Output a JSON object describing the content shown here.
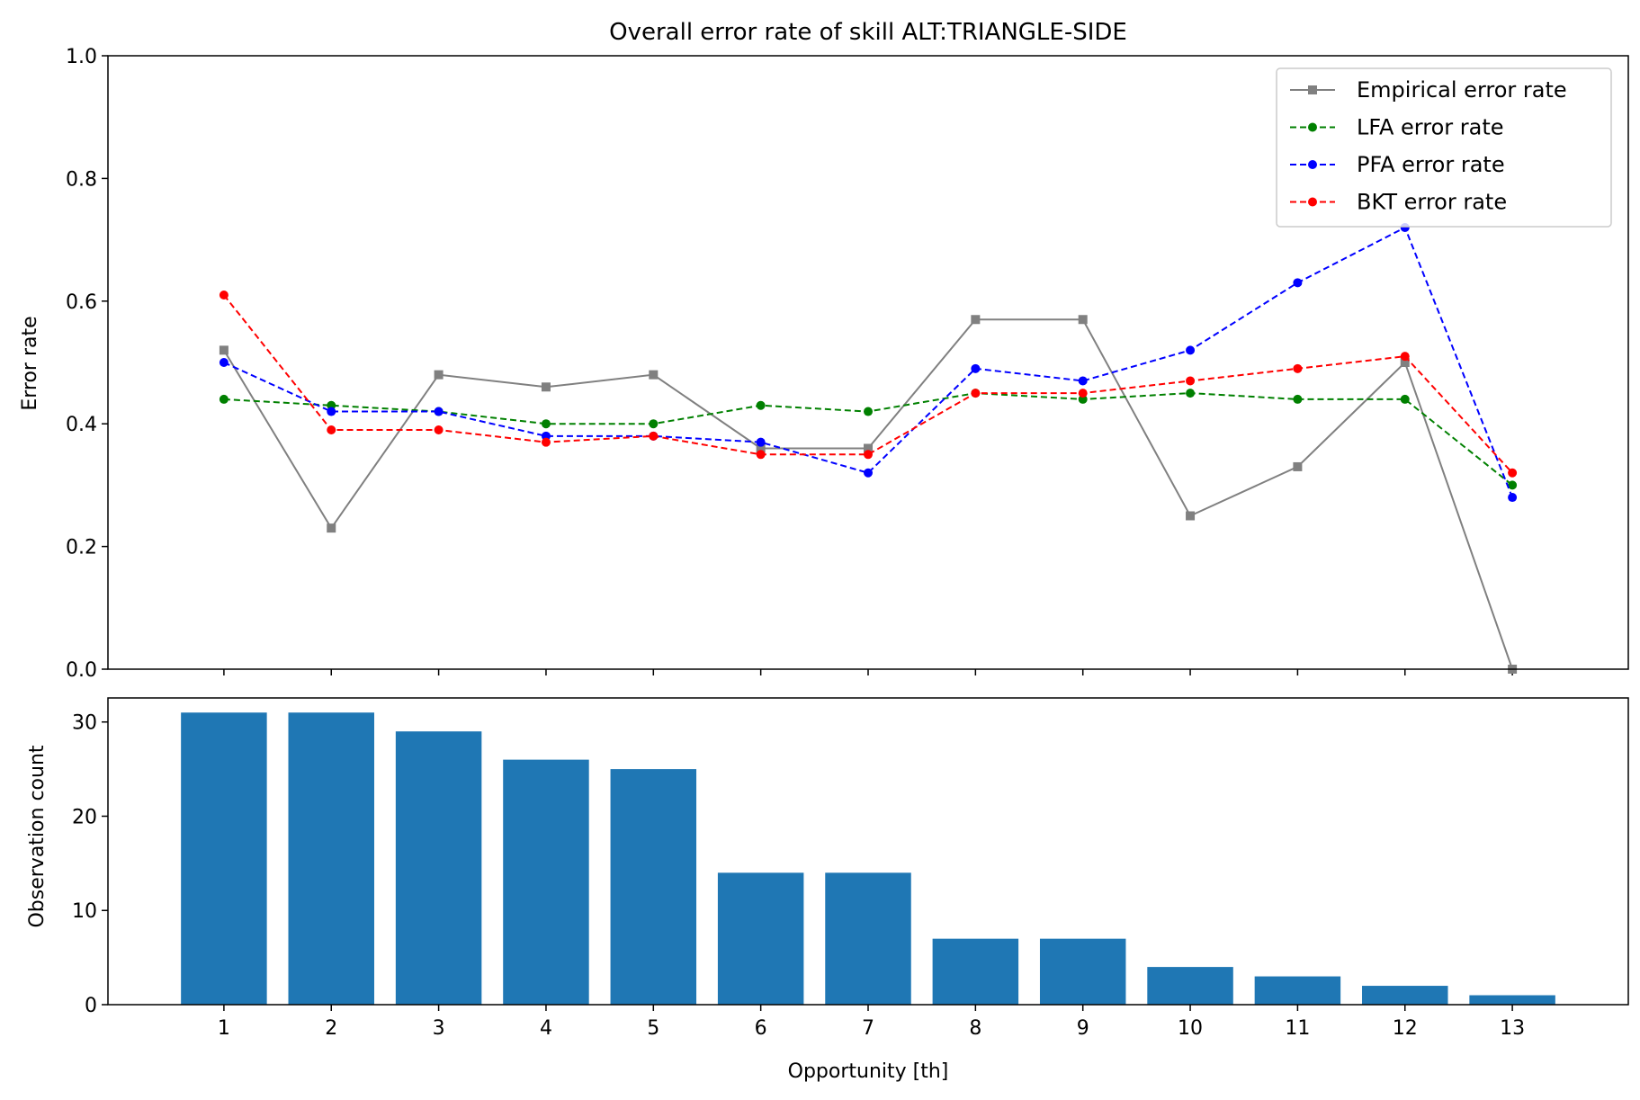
{
  "chart_data": [
    {
      "type": "line",
      "title": "Overall error rate of skill ALT:TRIANGLE-SIDE",
      "xlabel": "",
      "ylabel": "Error rate",
      "x": [
        1,
        2,
        3,
        4,
        5,
        6,
        7,
        8,
        9,
        10,
        11,
        12,
        13
      ],
      "xlim": [
        -0.08,
        14.08
      ],
      "ylim": [
        0,
        1
      ],
      "yticks": [
        "0.0",
        "0.2",
        "0.4",
        "0.6",
        "0.8",
        "1.0"
      ],
      "grid": false,
      "legend_position": "top-right",
      "series": [
        {
          "name": "Empirical error rate",
          "color": "#808080",
          "style": "solid",
          "marker": "square",
          "values": [
            0.52,
            0.23,
            0.48,
            0.46,
            0.48,
            0.36,
            0.36,
            0.57,
            0.57,
            0.25,
            0.33,
            0.5,
            0.0
          ]
        },
        {
          "name": "LFA error rate",
          "color": "#008000",
          "style": "dashed",
          "marker": "circle",
          "values": [
            0.44,
            0.43,
            0.42,
            0.4,
            0.4,
            0.43,
            0.42,
            0.45,
            0.44,
            0.45,
            0.44,
            0.44,
            0.3
          ]
        },
        {
          "name": "PFA error rate",
          "color": "#0000ff",
          "style": "dashed",
          "marker": "circle",
          "values": [
            0.5,
            0.42,
            0.42,
            0.38,
            0.38,
            0.37,
            0.32,
            0.49,
            0.47,
            0.52,
            0.63,
            0.72,
            0.28
          ]
        },
        {
          "name": "BKT error rate",
          "color": "#ff0000",
          "style": "dashed",
          "marker": "circle",
          "values": [
            0.61,
            0.39,
            0.39,
            0.37,
            0.38,
            0.35,
            0.35,
            0.45,
            0.45,
            0.47,
            0.49,
            0.51,
            0.32
          ]
        }
      ]
    },
    {
      "type": "bar",
      "xlabel": "Opportunity [th]",
      "ylabel": "Observation count",
      "categories": [
        "1",
        "2",
        "3",
        "4",
        "5",
        "6",
        "7",
        "8",
        "9",
        "10",
        "11",
        "12",
        "13"
      ],
      "values": [
        31,
        31,
        29,
        26,
        25,
        14,
        14,
        7,
        7,
        4,
        3,
        2,
        1
      ],
      "xlim": [
        -0.08,
        14.08
      ],
      "ylim": [
        0,
        32.55
      ],
      "yticks": [
        "0",
        "10",
        "20",
        "30"
      ],
      "bar_color": "#1f77b4",
      "grid": false
    }
  ]
}
